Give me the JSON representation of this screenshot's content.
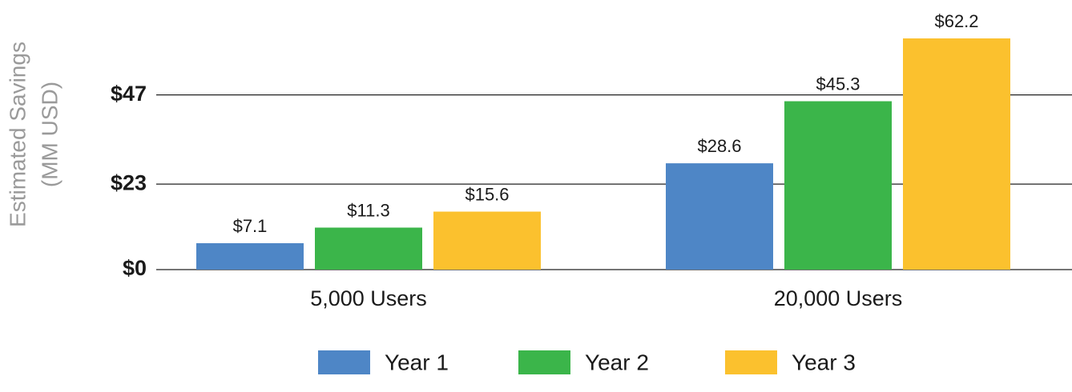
{
  "chart_data": {
    "type": "bar",
    "ylabel": [
      "Estimated Savings",
      "(MM USD)"
    ],
    "categories": [
      "5,000 Users",
      "20,000 Users"
    ],
    "series": [
      {
        "name": "Year 1",
        "color": "#4e86c6",
        "values": [
          7.1,
          28.6
        ],
        "value_labels": [
          "$7.1",
          "$28.6"
        ]
      },
      {
        "name": "Year 2",
        "color": "#3bb54a",
        "values": [
          11.3,
          45.3
        ],
        "value_labels": [
          "$11.3",
          "$45.3"
        ]
      },
      {
        "name": "Year 3",
        "color": "#fbc12e",
        "values": [
          15.6,
          62.2
        ],
        "value_labels": [
          "$15.6",
          "$62.2"
        ]
      }
    ],
    "ylim": [
      0,
      65
    ],
    "yticks": [
      {
        "value": 0,
        "label": "$0"
      },
      {
        "value": 23,
        "label": "$23"
      },
      {
        "value": 47,
        "label": "$47"
      }
    ],
    "grid": true,
    "legend": "bottom"
  }
}
